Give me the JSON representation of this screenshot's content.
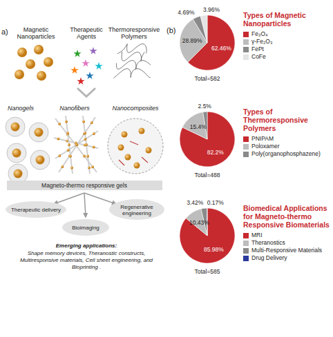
{
  "panels": [
    "a)",
    "(b)"
  ],
  "diagram": {
    "inputs": [
      "Magnetic Nanoparticles",
      "Therapeutic Agents",
      "Thermoresponsive Polymers"
    ],
    "forms": [
      "Nanogels",
      "Nanofibers",
      "Nanocomposites"
    ],
    "gel": "Magneto-thermo responsive gels",
    "applications": [
      "Therapeutic delivery",
      "Bioimaging",
      "Regenerative engineering"
    ],
    "emerging_title": "Emerging applications:",
    "emerging_text": "Shape memory devices, Theranostic constructs, Multiresponsive materials, Cell sheet engineering, and Bioprinting ."
  },
  "chart_data": [
    {
      "type": "pie",
      "title": "Types of Magnetic Nanoparticles",
      "categories": [
        "Fe₃O₄",
        "γ-Fe₂O₃",
        "FePt",
        "CoFe"
      ],
      "values": [
        62.46,
        28.89,
        4.69,
        3.96
      ],
      "value_labels": [
        "62.46%",
        "28.89%",
        "4.69%",
        "3.96%"
      ],
      "colors": [
        "#c62a2f",
        "#bdbdbd",
        "#8a8a8a",
        "#e4e4e4"
      ],
      "data_labels": true,
      "legend": "right",
      "annotations": [
        "Total=582"
      ]
    },
    {
      "type": "pie",
      "title": "Types of Thermoresponsive Polymers",
      "categories": [
        "PNIPAM",
        "Poloxamer",
        "Poly(organophosphazene)"
      ],
      "values": [
        82.2,
        15.4,
        2.5
      ],
      "value_labels": [
        "82.2%",
        "15.4%",
        "2.5%"
      ],
      "colors": [
        "#c62a2f",
        "#bdbdbd",
        "#8a8a8a"
      ],
      "data_labels": true,
      "legend": "right",
      "annotations": [
        "Total=488"
      ]
    },
    {
      "type": "pie",
      "title": "Biomedical Applications for Magneto-thermo Responsive Biomaterials",
      "categories": [
        "MRI",
        "Theranostics",
        "Multi-Responsive Materials",
        "Drug Delivery"
      ],
      "values": [
        85.98,
        10.43,
        3.42,
        0.17
      ],
      "value_labels": [
        "85.98%",
        "10.43%",
        "3.42%",
        "0.17%"
      ],
      "colors": [
        "#c62a2f",
        "#bdbdbd",
        "#8a8a8a",
        "#2b3a9c"
      ],
      "data_labels": true,
      "legend": "right",
      "annotations": [
        "Total=585"
      ]
    }
  ]
}
